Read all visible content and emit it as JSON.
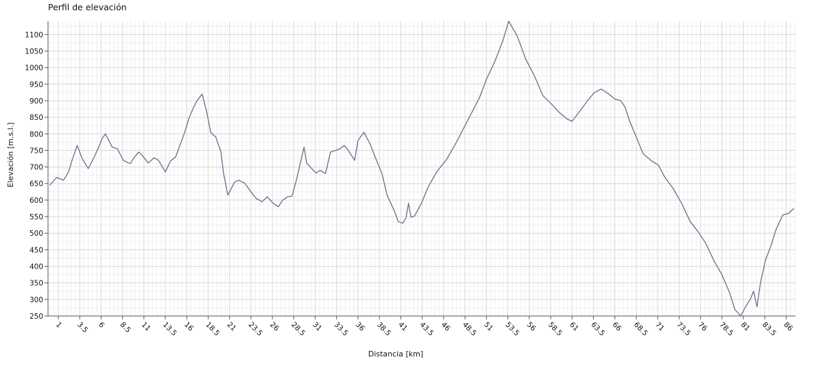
{
  "chart_data": {
    "type": "line",
    "title": "Perfil de elevación",
    "xlabel": "Distancia [km]",
    "ylabel": "Elevación [m.s.l.]",
    "xlim": [
      -0.2,
      87.1
    ],
    "ylim": [
      250,
      1140
    ],
    "grid": true,
    "line_color": "#6a6a8c",
    "x_ticks": [
      1,
      3.5,
      6,
      8.5,
      11,
      13.5,
      16,
      18.5,
      21,
      23.5,
      26,
      28.5,
      31,
      33.5,
      36,
      38.5,
      41,
      43.5,
      46,
      48.5,
      51,
      53.5,
      56,
      58.5,
      61,
      63.5,
      66,
      68.5,
      71,
      73.5,
      76,
      78.5,
      81,
      83.5,
      86
    ],
    "y_ticks": [
      250,
      300,
      350,
      400,
      450,
      500,
      550,
      600,
      650,
      700,
      750,
      800,
      850,
      900,
      950,
      1000,
      1050,
      1100
    ],
    "series": [
      {
        "x": [
          0,
          0.8,
          1.6,
          2.2,
          2.6,
          3.2,
          3.8,
          4.5,
          5.2,
          5.8,
          6.1,
          6.5,
          7.3,
          7.9,
          8.6,
          9.4,
          9.9,
          10.4,
          10.8,
          11.5,
          12.2,
          12.7,
          13.5,
          14.1,
          14.7,
          15.2,
          15.7,
          16.3,
          16.8,
          17.2,
          17.8,
          18.3,
          18.8,
          19.4,
          20.0,
          20.3,
          20.8,
          21.6,
          22.1,
          22.8,
          23.5,
          24.1,
          24.8,
          25.4,
          26.1,
          26.7,
          27.2,
          27.8,
          28.3,
          28.8,
          29.3,
          29.7,
          30.0,
          30.6,
          31.1,
          31.6,
          32.2,
          32.8,
          33.4,
          33.9,
          34.4,
          35.0,
          35.6,
          36.0,
          36.7,
          37.4,
          38.0,
          38.8,
          39.4,
          40.2,
          40.7,
          41.2,
          41.6,
          41.9,
          42.2,
          42.6,
          43.4,
          44.2,
          45.2,
          46.4,
          47.5,
          48.4,
          49.3,
          50.2,
          51.0,
          52.0,
          52.9,
          53.6,
          54.6,
          55.6,
          56.6,
          57.6,
          58.6,
          59.5,
          60.4,
          61.0,
          61.8,
          62.8,
          63.6,
          64.4,
          65.2,
          66.0,
          66.7,
          67.2,
          67.7,
          68.5,
          69.3,
          70.2,
          71.1,
          71.8,
          72.8,
          73.8,
          74.8,
          75.7,
          76.6,
          77.6,
          78.5,
          79.4,
          80.0,
          80.7,
          81.3,
          81.8,
          82.2,
          82.6,
          83.0,
          83.6,
          84.2,
          84.8,
          85.6,
          86.3,
          86.9
        ],
        "y": [
          645,
          668,
          660,
          685,
          720,
          765,
          725,
          695,
          730,
          765,
          785,
          800,
          760,
          755,
          720,
          710,
          730,
          745,
          735,
          712,
          728,
          720,
          685,
          718,
          730,
          765,
          800,
          850,
          880,
          900,
          920,
          870,
          805,
          790,
          745,
          680,
          615,
          655,
          660,
          650,
          625,
          605,
          595,
          610,
          590,
          580,
          600,
          610,
          612,
          660,
          715,
          760,
          712,
          695,
          682,
          690,
          680,
          745,
          750,
          755,
          765,
          745,
          720,
          780,
          805,
          770,
          730,
          680,
          615,
          570,
          535,
          530,
          545,
          590,
          548,
          552,
          590,
          640,
          685,
          725,
          775,
          820,
          865,
          910,
          965,
          1020,
          1080,
          1140,
          1095,
          1025,
          975,
          915,
          890,
          865,
          845,
          838,
          865,
          900,
          925,
          935,
          922,
          905,
          900,
          880,
          840,
          790,
          740,
          720,
          705,
          670,
          635,
          590,
          535,
          505,
          470,
          415,
          375,
          320,
          270,
          250,
          280,
          300,
          325,
          278,
          350,
          420,
          460,
          510,
          555,
          560,
          575
        ]
      }
    ]
  }
}
